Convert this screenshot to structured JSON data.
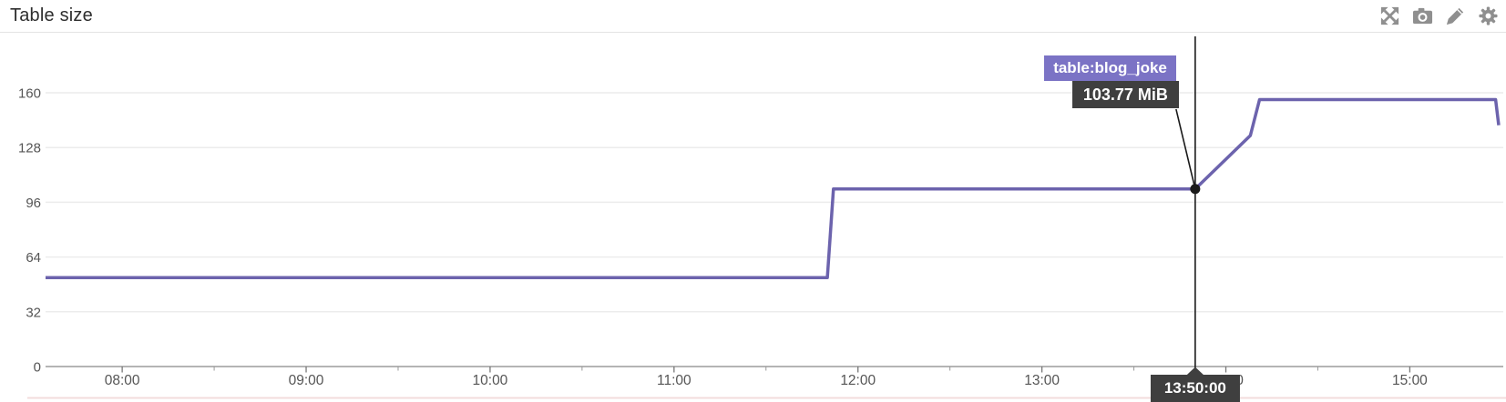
{
  "header": {
    "title": "Table size",
    "icons": [
      {
        "name": "move-icon"
      },
      {
        "name": "camera-icon"
      },
      {
        "name": "pencil-icon"
      },
      {
        "name": "gear-icon"
      }
    ]
  },
  "tooltip": {
    "series_label": "table:blog_joke",
    "value_label": "103.77 MiB",
    "time_label": "13:50:00"
  },
  "colors": {
    "line": "#6c63ad",
    "tooltip_series_bg": "#7b73c5",
    "tooltip_value_bg": "#3f3f3f",
    "crosshair": "#1a1a1a",
    "grid": "#ececec",
    "axis": "#888888",
    "tick": "#777777",
    "tick_label": "#555555",
    "icon": "#8f8f8f",
    "bottom_divider": "#f3dcdc"
  },
  "chart_data": {
    "type": "line",
    "title": "Table size",
    "xlabel": "",
    "ylabel": "",
    "unit": "MiB",
    "grid": true,
    "legend_position": "none",
    "x_domain": [
      "07:35",
      "15:29"
    ],
    "y_domain": [
      0,
      193
    ],
    "y_ticks": [
      0,
      32,
      64,
      96,
      128,
      160
    ],
    "x_ticks_major": [
      "08:00",
      "09:00",
      "10:00",
      "11:00",
      "12:00",
      "13:00",
      "14:00",
      "15:00"
    ],
    "x_ticks_minor": [
      "08:30",
      "09:30",
      "10:30",
      "11:30",
      "12:30",
      "13:30",
      "14:30"
    ],
    "series": [
      {
        "name": "table:blog_joke",
        "color": "#6c63ad",
        "points": [
          {
            "t": "07:35",
            "v": 52
          },
          {
            "t": "11:50",
            "v": 52
          },
          {
            "t": "11:52",
            "v": 103.77
          },
          {
            "t": "13:50",
            "v": 103.77
          },
          {
            "t": "14:08",
            "v": 135
          },
          {
            "t": "14:11",
            "v": 156
          },
          {
            "t": "15:28",
            "v": 156
          },
          {
            "t": "15:29",
            "v": 141
          }
        ]
      }
    ],
    "crosshair": {
      "t": "13:50",
      "v": 103.77,
      "time_label": "13:50:00",
      "value_label": "103.77 MiB"
    }
  }
}
